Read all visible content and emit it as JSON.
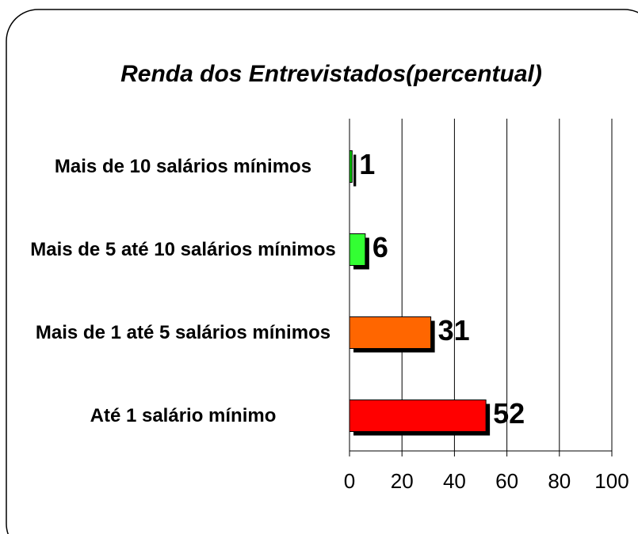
{
  "chart_data": {
    "type": "bar",
    "orientation": "horizontal",
    "title": "Renda dos Entrevistados(percentual)",
    "categories": [
      "Mais de 10 salários mínimos",
      "Mais de 5 até 10 salários mínimos",
      "Mais de 1 até 5 salários mínimos",
      "Até 1 salário mínimo"
    ],
    "values": [
      1,
      6,
      31,
      52
    ],
    "colors": [
      "#00cc00",
      "#33ff33",
      "#ff6600",
      "#ff0000"
    ],
    "xlim": [
      0,
      100
    ],
    "xticks": [
      0,
      20,
      40,
      60,
      80,
      100
    ],
    "grid": true
  }
}
